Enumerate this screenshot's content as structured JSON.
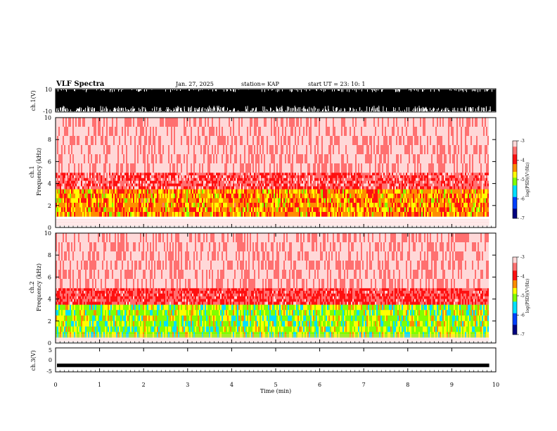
{
  "header": {
    "title": "VLF Spectra",
    "date": "Jan. 27, 2025",
    "station": "station= KAP",
    "start": "start  UT  =   23: 10: 1"
  },
  "colors": {
    "spectrum": [
      "#ffffff",
      "#ffd0d0",
      "#ff6060",
      "#ff0000",
      "#ffa000",
      "#ffff00",
      "#00ff00",
      "#00c0ff",
      "#0000ff",
      "#000080"
    ],
    "waveform": "#000000"
  },
  "chart_data": [
    {
      "type": "line",
      "name": "ch1-waveform",
      "ylabel": "ch.1(V)",
      "ylim": [
        -10,
        10
      ],
      "yticks": [
        "10",
        "-10"
      ],
      "xlim": [
        0,
        10
      ],
      "description_values": "dense broadband waveform saturating between -10 and 10 V"
    },
    {
      "type": "heatmap",
      "name": "ch1-spectrogram",
      "ylabel": "ch.1\nFrequency (kHz)",
      "xlim": [
        0,
        9.85
      ],
      "ylim": [
        0,
        10
      ],
      "yticks": [
        "0",
        "2",
        "4",
        "6",
        "8",
        "10"
      ],
      "colorbar": {
        "label": "log(PSD)(V²/Hz)",
        "range": [
          -7,
          -3
        ],
        "ticks": [
          "-3",
          "-4",
          "-5",
          "-6",
          "-7"
        ]
      },
      "bands": [
        {
          "from_khz": 1.0,
          "to_khz": 3.5,
          "level": -4.0
        },
        {
          "from_khz": 3.5,
          "to_khz": 5.0,
          "level": -3.5
        },
        {
          "from_khz": 5.0,
          "to_khz": 10.0,
          "level": -3.1
        }
      ]
    },
    {
      "type": "heatmap",
      "name": "ch2-spectrogram",
      "ylabel": "ch.2\nFrequency (kHz)",
      "xlim": [
        0,
        9.85
      ],
      "ylim": [
        0,
        10
      ],
      "yticks": [
        "0",
        "2",
        "4",
        "6",
        "8",
        "10"
      ],
      "colorbar": {
        "label": "log(PSD)(V²/Hz)",
        "range": [
          -7,
          -3
        ],
        "ticks": [
          "-3",
          "-4",
          "-5",
          "-6",
          "-7"
        ]
      },
      "bands": [
        {
          "from_khz": 0.5,
          "to_khz": 3.5,
          "level": -4.6
        },
        {
          "from_khz": 3.5,
          "to_khz": 5.0,
          "level": -3.6
        },
        {
          "from_khz": 5.0,
          "to_khz": 10.0,
          "level": -3.1
        }
      ]
    },
    {
      "type": "line",
      "name": "ch3-waveform",
      "ylabel": "ch.3(V)",
      "ylim": [
        -5,
        5
      ],
      "yticks": [
        "5",
        "0",
        "-5"
      ],
      "xlim": [
        0,
        10
      ],
      "offset_v": -2.3
    }
  ],
  "xaxis": {
    "label": "Time  (min)",
    "ticks": [
      "0",
      "1",
      "2",
      "3",
      "4",
      "5",
      "6",
      "7",
      "8",
      "9",
      "10"
    ]
  }
}
